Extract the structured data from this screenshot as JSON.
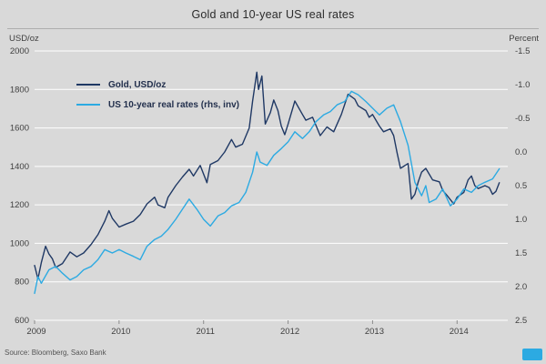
{
  "header": {
    "title": "Gold and 10-year US real rates",
    "left_axis_unit": "USD/oz",
    "right_axis_unit": "Percent"
  },
  "legend": {
    "gold_label": "Gold, USD/oz",
    "rates_label": "US 10-year real rates (rhs, inv)"
  },
  "footer": {
    "source": "Source: Bloomberg, Saxo Bank"
  },
  "logo_color": "#2caae2",
  "chart_data": {
    "type": "line",
    "title": "Gold and 10-year US real rates",
    "xlim": [
      2009,
      2014.6
    ],
    "x_ticks": [
      "2009",
      "2010",
      "2011",
      "2012",
      "2013",
      "2014"
    ],
    "grid": "horizontal-white",
    "legend_position": "upper-left-inside",
    "left_axis": {
      "label": "USD/oz",
      "lim": [
        600,
        2000
      ],
      "ticks": [
        "2000",
        "1800",
        "1600",
        "1400",
        "1200",
        "1000",
        "800",
        "600"
      ]
    },
    "right_axis": {
      "label": "Percent",
      "lim": [
        -1.5,
        2.5
      ],
      "inverted": true,
      "ticks": [
        "-1.5",
        "-1.0",
        "-0.5",
        "0.0",
        "0.5",
        "1.0",
        "1.5",
        "2.0",
        "2.5"
      ]
    },
    "series": [
      {
        "name": "Gold, USD/oz",
        "axis": "left",
        "color": "#1f3864",
        "points": [
          [
            2009.0,
            885
          ],
          [
            2009.04,
            815
          ],
          [
            2009.08,
            900
          ],
          [
            2009.13,
            985
          ],
          [
            2009.17,
            945
          ],
          [
            2009.21,
            920
          ],
          [
            2009.25,
            875
          ],
          [
            2009.33,
            895
          ],
          [
            2009.42,
            955
          ],
          [
            2009.5,
            930
          ],
          [
            2009.58,
            950
          ],
          [
            2009.67,
            995
          ],
          [
            2009.75,
            1045
          ],
          [
            2009.83,
            1115
          ],
          [
            2009.88,
            1170
          ],
          [
            2009.92,
            1130
          ],
          [
            2010.0,
            1085
          ],
          [
            2010.08,
            1100
          ],
          [
            2010.17,
            1115
          ],
          [
            2010.25,
            1150
          ],
          [
            2010.33,
            1205
          ],
          [
            2010.42,
            1240
          ],
          [
            2010.46,
            1200
          ],
          [
            2010.54,
            1185
          ],
          [
            2010.58,
            1240
          ],
          [
            2010.67,
            1300
          ],
          [
            2010.75,
            1345
          ],
          [
            2010.83,
            1385
          ],
          [
            2010.88,
            1350
          ],
          [
            2010.96,
            1405
          ],
          [
            2011.0,
            1360
          ],
          [
            2011.04,
            1315
          ],
          [
            2011.08,
            1410
          ],
          [
            2011.17,
            1430
          ],
          [
            2011.25,
            1475
          ],
          [
            2011.33,
            1540
          ],
          [
            2011.38,
            1500
          ],
          [
            2011.46,
            1515
          ],
          [
            2011.54,
            1600
          ],
          [
            2011.58,
            1740
          ],
          [
            2011.63,
            1890
          ],
          [
            2011.65,
            1800
          ],
          [
            2011.69,
            1870
          ],
          [
            2011.73,
            1620
          ],
          [
            2011.79,
            1680
          ],
          [
            2011.83,
            1745
          ],
          [
            2011.88,
            1690
          ],
          [
            2011.92,
            1610
          ],
          [
            2011.96,
            1565
          ],
          [
            2012.0,
            1620
          ],
          [
            2012.08,
            1740
          ],
          [
            2012.17,
            1670
          ],
          [
            2012.21,
            1640
          ],
          [
            2012.29,
            1655
          ],
          [
            2012.38,
            1560
          ],
          [
            2012.46,
            1605
          ],
          [
            2012.54,
            1580
          ],
          [
            2012.63,
            1670
          ],
          [
            2012.71,
            1775
          ],
          [
            2012.79,
            1750
          ],
          [
            2012.83,
            1715
          ],
          [
            2012.92,
            1690
          ],
          [
            2012.96,
            1655
          ],
          [
            2013.0,
            1670
          ],
          [
            2013.08,
            1610
          ],
          [
            2013.13,
            1580
          ],
          [
            2013.21,
            1595
          ],
          [
            2013.25,
            1560
          ],
          [
            2013.29,
            1470
          ],
          [
            2013.33,
            1390
          ],
          [
            2013.42,
            1415
          ],
          [
            2013.46,
            1230
          ],
          [
            2013.5,
            1255
          ],
          [
            2013.54,
            1320
          ],
          [
            2013.58,
            1370
          ],
          [
            2013.63,
            1390
          ],
          [
            2013.71,
            1330
          ],
          [
            2013.79,
            1320
          ],
          [
            2013.83,
            1275
          ],
          [
            2013.88,
            1250
          ],
          [
            2013.96,
            1205
          ],
          [
            2014.0,
            1240
          ],
          [
            2014.08,
            1265
          ],
          [
            2014.13,
            1330
          ],
          [
            2014.17,
            1350
          ],
          [
            2014.21,
            1300
          ],
          [
            2014.25,
            1285
          ],
          [
            2014.33,
            1300
          ],
          [
            2014.38,
            1290
          ],
          [
            2014.42,
            1255
          ],
          [
            2014.46,
            1270
          ],
          [
            2014.5,
            1315
          ]
        ]
      },
      {
        "name": "US 10-year real rates (rhs, inv)",
        "axis": "right",
        "color": "#2caae2",
        "points": [
          [
            2009.0,
            2.1
          ],
          [
            2009.04,
            1.85
          ],
          [
            2009.08,
            1.95
          ],
          [
            2009.17,
            1.75
          ],
          [
            2009.25,
            1.7
          ],
          [
            2009.33,
            1.8
          ],
          [
            2009.42,
            1.9
          ],
          [
            2009.5,
            1.85
          ],
          [
            2009.58,
            1.75
          ],
          [
            2009.67,
            1.7
          ],
          [
            2009.75,
            1.6
          ],
          [
            2009.83,
            1.45
          ],
          [
            2009.92,
            1.5
          ],
          [
            2010.0,
            1.45
          ],
          [
            2010.08,
            1.5
          ],
          [
            2010.17,
            1.55
          ],
          [
            2010.25,
            1.6
          ],
          [
            2010.33,
            1.4
          ],
          [
            2010.42,
            1.3
          ],
          [
            2010.5,
            1.25
          ],
          [
            2010.58,
            1.15
          ],
          [
            2010.67,
            1.0
          ],
          [
            2010.75,
            0.85
          ],
          [
            2010.83,
            0.7
          ],
          [
            2010.92,
            0.85
          ],
          [
            2011.0,
            1.0
          ],
          [
            2011.08,
            1.1
          ],
          [
            2011.17,
            0.95
          ],
          [
            2011.25,
            0.9
          ],
          [
            2011.33,
            0.8
          ],
          [
            2011.42,
            0.75
          ],
          [
            2011.5,
            0.6
          ],
          [
            2011.58,
            0.3
          ],
          [
            2011.63,
            0.0
          ],
          [
            2011.67,
            0.15
          ],
          [
            2011.75,
            0.2
          ],
          [
            2011.83,
            0.05
          ],
          [
            2011.92,
            -0.05
          ],
          [
            2012.0,
            -0.15
          ],
          [
            2012.08,
            -0.3
          ],
          [
            2012.17,
            -0.2
          ],
          [
            2012.25,
            -0.3
          ],
          [
            2012.33,
            -0.45
          ],
          [
            2012.42,
            -0.55
          ],
          [
            2012.5,
            -0.6
          ],
          [
            2012.58,
            -0.7
          ],
          [
            2012.67,
            -0.75
          ],
          [
            2012.75,
            -0.9
          ],
          [
            2012.83,
            -0.85
          ],
          [
            2012.92,
            -0.75
          ],
          [
            2013.0,
            -0.65
          ],
          [
            2013.08,
            -0.55
          ],
          [
            2013.17,
            -0.65
          ],
          [
            2013.25,
            -0.7
          ],
          [
            2013.33,
            -0.45
          ],
          [
            2013.42,
            -0.1
          ],
          [
            2013.5,
            0.45
          ],
          [
            2013.58,
            0.65
          ],
          [
            2013.63,
            0.5
          ],
          [
            2013.67,
            0.75
          ],
          [
            2013.75,
            0.7
          ],
          [
            2013.83,
            0.55
          ],
          [
            2013.92,
            0.8
          ],
          [
            2014.0,
            0.7
          ],
          [
            2014.08,
            0.55
          ],
          [
            2014.17,
            0.6
          ],
          [
            2014.25,
            0.5
          ],
          [
            2014.33,
            0.45
          ],
          [
            2014.42,
            0.4
          ],
          [
            2014.5,
            0.25
          ]
        ]
      }
    ]
  }
}
